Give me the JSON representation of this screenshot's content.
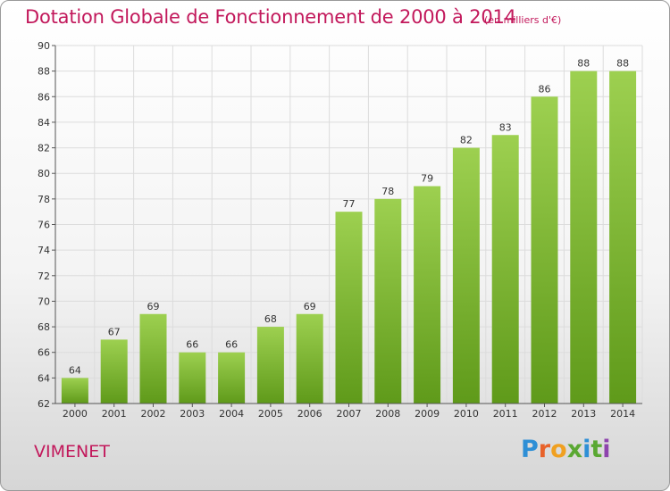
{
  "title": "Dotation Globale de Fonctionnement de 2000 à 2014",
  "subtitle": "(en milliers d'€)",
  "commune": "VIMENET",
  "logo": {
    "text": "Proxiti",
    "letters": [
      "P",
      "r",
      "o",
      "x",
      "i",
      "t",
      "i"
    ]
  },
  "colors": {
    "title": "#c2185b",
    "bar_light": "#9dd050",
    "bar_dark": "#5f9a1a",
    "grid": "#dcdcdc",
    "axis": "#555555"
  },
  "chart_data": {
    "type": "bar",
    "categories": [
      "2000",
      "2001",
      "2002",
      "2003",
      "2004",
      "2005",
      "2006",
      "2007",
      "2008",
      "2009",
      "2010",
      "2011",
      "2012",
      "2013",
      "2014"
    ],
    "values": [
      64,
      67,
      69,
      66,
      66,
      68,
      69,
      77,
      78,
      79,
      82,
      83,
      86,
      88,
      88
    ],
    "ylim": [
      62,
      90
    ],
    "yticks": [
      62,
      64,
      66,
      68,
      70,
      72,
      74,
      76,
      78,
      80,
      82,
      84,
      86,
      88,
      90
    ],
    "grid": true,
    "data_labels": true
  }
}
